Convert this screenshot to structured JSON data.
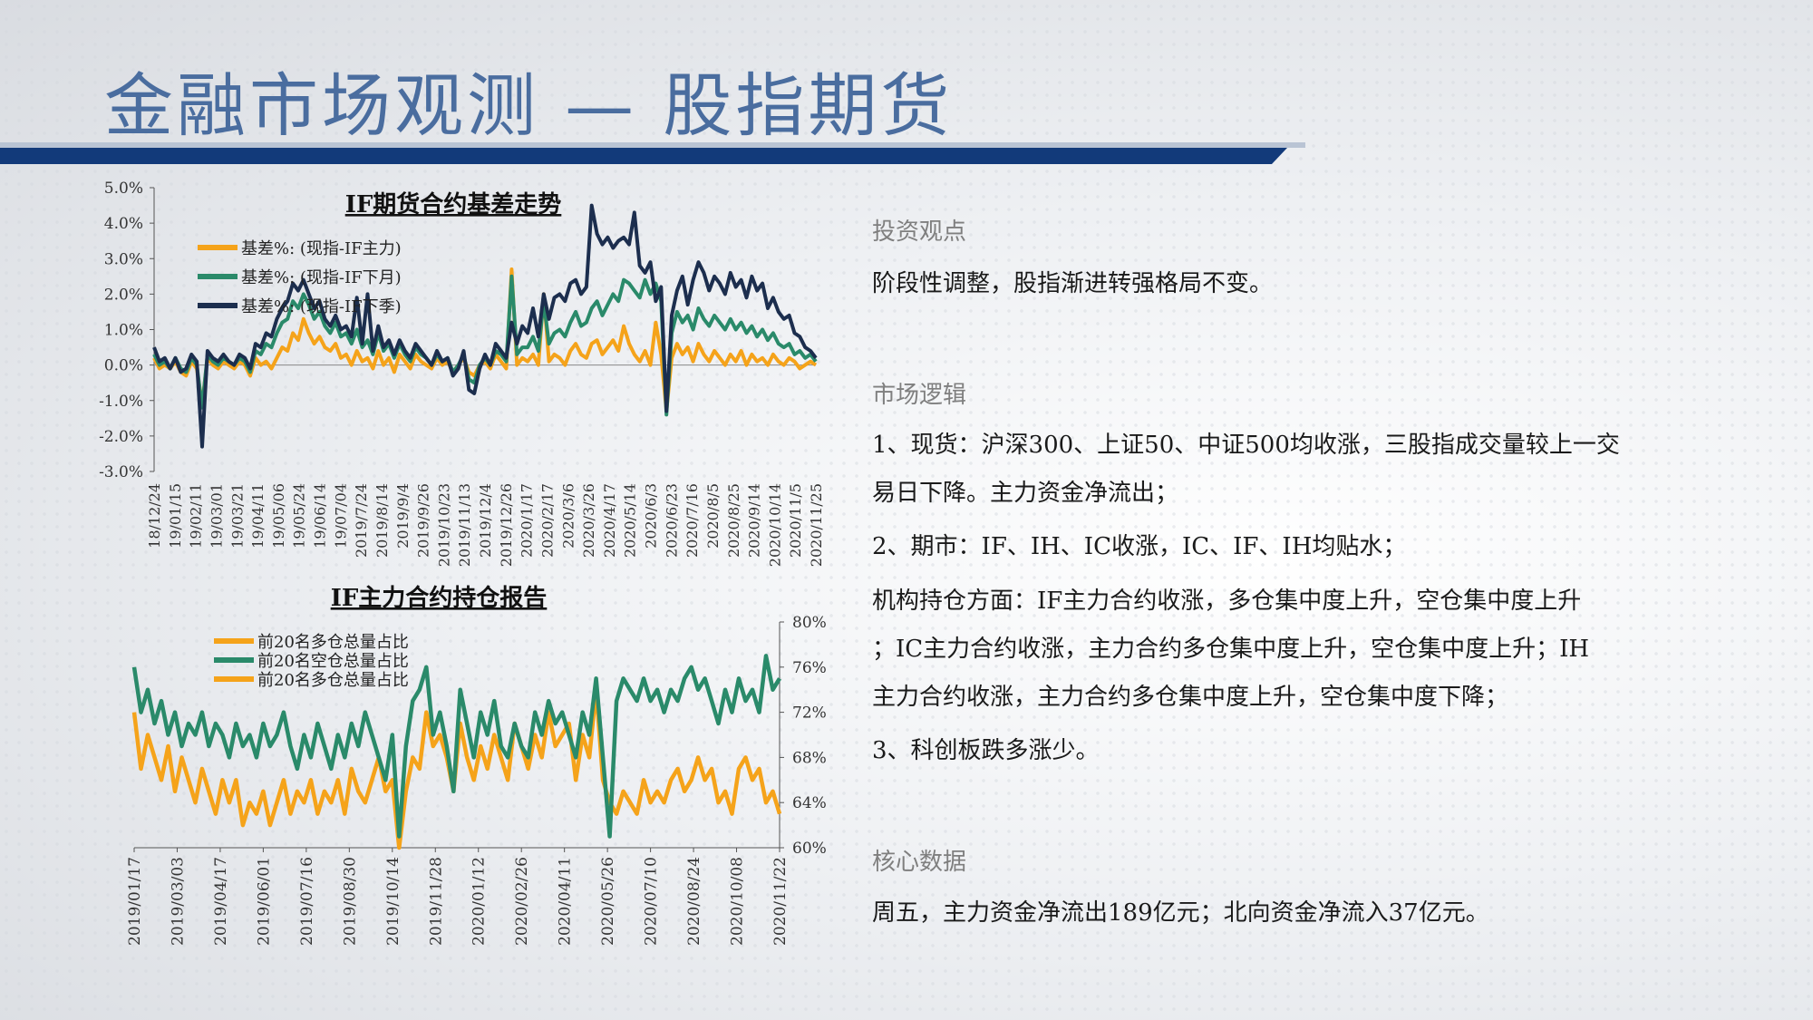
{
  "page": {
    "title": "金融市场观测 — 股指期货"
  },
  "chart_data": [
    {
      "type": "line",
      "title": "IF期货合约基差走势",
      "y_tick_labels": [
        "5.0%",
        "4.0%",
        "3.0%",
        "2.0%",
        "1.0%",
        "0.0%",
        "-1.0%",
        "-2.0%",
        "-3.0%"
      ],
      "ylim": [
        -3,
        5
      ],
      "x_tick_labels": [
        "18/12/24",
        "19/01/15",
        "19/02/11",
        "19/03/01",
        "19/03/21",
        "19/04/11",
        "19/05/06",
        "19/05/24",
        "19/06/14",
        "19/07/04",
        "2019/7/24",
        "2019/8/14",
        "2019/9/4",
        "2019/9/26",
        "2019/10/23",
        "2019/11/13",
        "2019/12/4",
        "2019/12/26",
        "2020/1/17",
        "2020/2/17",
        "2020/3/6",
        "2020/3/26",
        "2020/4/17",
        "2020/5/14",
        "2020/6/3",
        "2020/6/23",
        "2020/7/16",
        "2020/8/5",
        "2020/8/25",
        "2020/9/14",
        "2020/10/14",
        "2020/11/5",
        "2020/11/25"
      ],
      "legend_position": "top-left",
      "series": [
        {
          "name": "基差%: (现指-IF主力)",
          "color": "#f5a31a",
          "values": [
            0.2,
            -0.1,
            0.0,
            -0.1,
            0.1,
            -0.2,
            -0.3,
            0.1,
            -0.1,
            -1.1,
            0.2,
            0.0,
            -0.1,
            0.1,
            0.0,
            -0.1,
            0.1,
            0.0,
            -0.3,
            0.2,
            0.0,
            0.1,
            -0.1,
            0.2,
            0.5,
            0.4,
            0.9,
            0.7,
            1.3,
            0.9,
            0.6,
            0.8,
            0.5,
            0.4,
            0.6,
            0.2,
            0.3,
            0.0,
            0.4,
            0.1,
            0.2,
            -0.1,
            0.4,
            0.0,
            0.2,
            -0.2,
            0.3,
            0.1,
            -0.1,
            0.3,
            0.1,
            0.0,
            -0.1,
            0.2,
            0.0,
            0.1,
            -0.2,
            0.0,
            0.2,
            -0.2,
            -0.3,
            0.0,
            0.1,
            -0.1,
            0.3,
            0.1,
            -0.1,
            2.7,
            0.0,
            0.2,
            0.1,
            0.3,
            0.0,
            2.0,
            0.1,
            0.3,
            0.2,
            0.0,
            0.4,
            0.6,
            0.3,
            0.2,
            0.6,
            0.7,
            0.3,
            0.5,
            0.7,
            0.4,
            1.1,
            0.6,
            0.3,
            0.1,
            0.4,
            0.0,
            1.2,
            0.3,
            -1.3,
            0.2,
            0.6,
            0.3,
            0.5,
            0.1,
            0.6,
            0.3,
            0.1,
            0.4,
            0.2,
            0.0,
            0.3,
            0.1,
            0.4,
            0.0,
            0.3,
            0.1,
            0.2,
            0.0,
            0.3,
            0.1,
            0.0,
            0.2,
            0.1,
            -0.1,
            0.0,
            0.1,
            0.0
          ]
        },
        {
          "name": "基差%: (现指-IF下月)",
          "color": "#2a8a6a",
          "values": [
            0.3,
            0.0,
            0.1,
            -0.1,
            0.2,
            -0.1,
            -0.2,
            0.2,
            0.0,
            -1.2,
            0.3,
            0.1,
            0.0,
            0.2,
            0.1,
            0.0,
            0.2,
            0.1,
            -0.2,
            0.4,
            0.3,
            0.6,
            0.5,
            0.9,
            1.2,
            1.3,
            1.8,
            1.6,
            2.0,
            1.7,
            1.3,
            1.5,
            1.1,
            0.9,
            1.2,
            0.8,
            0.9,
            0.6,
            1.0,
            0.5,
            0.7,
            0.3,
            0.9,
            0.4,
            0.6,
            0.2,
            0.6,
            0.3,
            0.1,
            0.5,
            0.3,
            0.2,
            0.0,
            0.3,
            0.1,
            0.2,
            -0.2,
            0.0,
            0.3,
            -0.4,
            -0.5,
            0.0,
            0.2,
            0.0,
            0.4,
            0.3,
            0.1,
            2.5,
            0.3,
            0.5,
            0.5,
            0.8,
            0.4,
            1.8,
            0.6,
            0.9,
            1.0,
            0.8,
            1.2,
            1.5,
            1.1,
            1.2,
            1.6,
            1.8,
            1.4,
            1.7,
            2.0,
            1.8,
            2.4,
            2.3,
            2.1,
            1.9,
            2.4,
            2.0,
            2.3,
            1.8,
            -1.4,
            0.9,
            1.5,
            1.2,
            1.4,
            1.0,
            1.6,
            1.3,
            1.1,
            1.4,
            1.2,
            1.0,
            1.3,
            1.0,
            1.2,
            0.9,
            1.1,
            0.8,
            1.0,
            0.7,
            0.9,
            0.6,
            0.5,
            0.6,
            0.3,
            0.4,
            0.2,
            0.3,
            0.1
          ]
        },
        {
          "name": "基差%: (现指-IF下季)",
          "color": "#1c2e4e",
          "values": [
            0.5,
            0.1,
            0.2,
            -0.1,
            0.2,
            -0.2,
            -0.1,
            0.3,
            0.1,
            -2.3,
            0.4,
            0.2,
            0.1,
            0.3,
            0.1,
            0.0,
            0.3,
            0.2,
            -0.1,
            0.6,
            0.5,
            0.9,
            0.8,
            1.3,
            1.6,
            1.8,
            2.3,
            2.1,
            2.4,
            2.0,
            1.6,
            1.8,
            1.3,
            1.1,
            1.4,
            1.0,
            1.1,
            0.8,
            1.9,
            0.6,
            2.0,
            0.4,
            1.1,
            0.5,
            0.7,
            0.3,
            0.7,
            0.4,
            0.2,
            0.6,
            0.4,
            0.2,
            0.0,
            0.4,
            0.1,
            0.2,
            -0.3,
            -0.1,
            0.4,
            -0.7,
            -0.8,
            -0.1,
            0.3,
            0.0,
            0.6,
            0.4,
            0.2,
            1.2,
            0.6,
            1.1,
            0.9,
            1.6,
            0.8,
            2.0,
            1.3,
            1.9,
            2.0,
            1.8,
            2.3,
            2.4,
            2.0,
            2.2,
            4.5,
            3.7,
            3.4,
            3.6,
            3.3,
            3.5,
            3.6,
            3.4,
            4.3,
            2.8,
            2.6,
            2.9,
            1.8,
            2.2,
            -1.3,
            1.4,
            2.1,
            2.5,
            1.7,
            2.4,
            2.9,
            2.6,
            2.1,
            2.5,
            2.3,
            2.0,
            2.6,
            2.2,
            2.4,
            1.9,
            2.5,
            2.1,
            2.3,
            1.6,
            1.9,
            1.5,
            1.3,
            1.4,
            0.9,
            0.8,
            0.5,
            0.4,
            0.2
          ]
        }
      ]
    },
    {
      "type": "line",
      "title": "IF主力合约持仓报告",
      "y_tick_labels": [
        "80%",
        "76%",
        "72%",
        "68%",
        "64%",
        "60%"
      ],
      "ylim": [
        60,
        80
      ],
      "y_axis_side": "right",
      "x_tick_labels": [
        "2019/01/17",
        "2019/03/03",
        "2019/04/17",
        "2019/06/01",
        "2019/07/16",
        "2019/08/30",
        "2019/10/14",
        "2019/11/28",
        "2020/01/12",
        "2020/02/26",
        "2020/04/11",
        "2020/05/26",
        "2020/07/10",
        "2020/08/24",
        "2020/10/08",
        "2020/11/22"
      ],
      "legend_position": "top-left",
      "series": [
        {
          "name": "前20名多仓总量占比",
          "color": "#f5a31a",
          "values": [
            72,
            67,
            70,
            68,
            66,
            69,
            65,
            68,
            66,
            64,
            67,
            65,
            63,
            66,
            64,
            66,
            62,
            64,
            63,
            65,
            62,
            64,
            66,
            63,
            65,
            64,
            66,
            63,
            65,
            64,
            66,
            63,
            67,
            65,
            64,
            66,
            68,
            65,
            66,
            60,
            65,
            68,
            67,
            72,
            69,
            70,
            68,
            65,
            71,
            68,
            66,
            69,
            67,
            70,
            68,
            66,
            71,
            69,
            67,
            70,
            68,
            72,
            69,
            70,
            71,
            66,
            70,
            68,
            74,
            66,
            64,
            63,
            65,
            64,
            63,
            66,
            64,
            65,
            64,
            66,
            67,
            65,
            66,
            68,
            66,
            67,
            64,
            65,
            63,
            67,
            68,
            66,
            67,
            64,
            65,
            63
          ]
        },
        {
          "name": "前20名空仓总量占比",
          "color": "#2a8a6a",
          "values": [
            76,
            72,
            74,
            71,
            73,
            70,
            72,
            69,
            71,
            70,
            72,
            69,
            71,
            70,
            68,
            71,
            69,
            70,
            68,
            71,
            69,
            70,
            72,
            69,
            67,
            70,
            68,
            71,
            69,
            67,
            70,
            68,
            71,
            69,
            72,
            70,
            68,
            66,
            70,
            61,
            69,
            73,
            74,
            76,
            70,
            72,
            69,
            65,
            74,
            71,
            68,
            72,
            70,
            73,
            69,
            68,
            71,
            69,
            68,
            72,
            70,
            73,
            71,
            72,
            70,
            68,
            72,
            70,
            75,
            68,
            61,
            73,
            75,
            74,
            73,
            75,
            73,
            74,
            72,
            74,
            73,
            75,
            76,
            74,
            75,
            73,
            71,
            74,
            72,
            75,
            73,
            74,
            72,
            77,
            74,
            75
          ]
        },
        {
          "name": "前20名多仓总量占比",
          "color": "#f5a31a",
          "values": []
        }
      ]
    }
  ],
  "panel": {
    "section1_head": "投资观点",
    "section1_text": "阶段性调整，股指渐进转强格局不变。",
    "section2_head": "市场逻辑",
    "section2_lines": [
      "1、现货：沪深300、上证50、中证500均收涨，三股指成交量较上一交",
      "易日下降。主力资金净流出；",
      "2、期市：IF、IH、IC收涨，IC、IF、IH均贴水；",
      "机构持仓方面：IF主力合约收涨，多仓集中度上升，空仓集中度上升",
      "；IC主力合约收涨，主力合约多仓集中度上升，空仓集中度上升；IH",
      "主力合约收涨，主力合约多仓集中度上升，空仓集中度下降；",
      "3、科创板跌多涨少。"
    ],
    "section3_head": "核心数据",
    "section3_text": "周五，主力资金净流出189亿元；北向资金净流入37亿元。"
  }
}
